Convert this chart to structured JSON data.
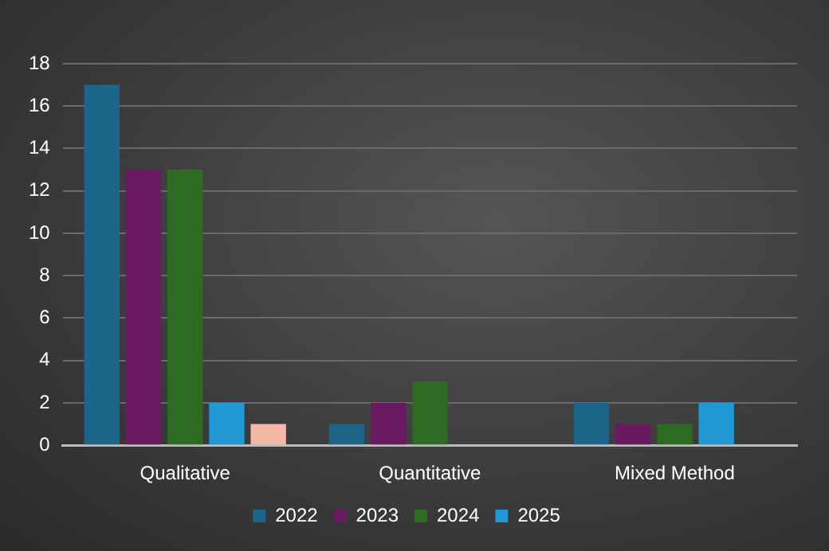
{
  "chart_data": {
    "type": "bar",
    "categories": [
      "Qualitative",
      "Quantitative",
      "Mixed Method"
    ],
    "series": [
      {
        "name": "2022",
        "color": "#1d6489",
        "values": [
          17,
          1,
          2
        ]
      },
      {
        "name": "2023",
        "color": "#6a1a60",
        "values": [
          13,
          2,
          1
        ]
      },
      {
        "name": "2024",
        "color": "#2e6b22",
        "values": [
          13,
          3,
          1
        ]
      },
      {
        "name": "2025",
        "color": "#2197d4",
        "values": [
          2,
          null,
          2
        ]
      },
      {
        "color": "#f4b8a8",
        "values": [
          1,
          null,
          null
        ]
      }
    ],
    "ylim": [
      0,
      18
    ],
    "yticks": [
      0,
      2,
      4,
      6,
      8,
      10,
      12,
      14,
      16,
      18
    ],
    "grid": "y",
    "legend": "bottom"
  }
}
